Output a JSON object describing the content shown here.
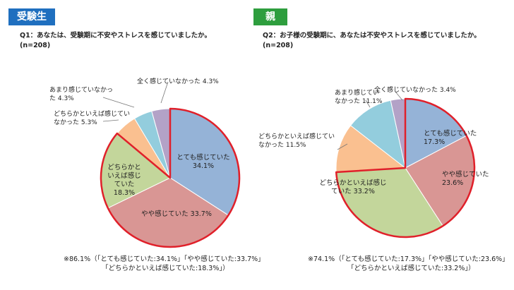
{
  "colors": {
    "students_tag": "#1f6fbf",
    "parents_tag": "#2e9e3e",
    "highlight_border": "#e0202a",
    "callout_line": "#777777"
  },
  "chart_data": [
    {
      "type": "pie",
      "panel": "students",
      "tag": "受験生",
      "question": "Q1：あなたは、受験期に不安やストレスを感じていましたか。",
      "n": "(n=208)",
      "start": "top",
      "direction": "clockwise",
      "slices": [
        {
          "label": [
            "とても感じていた",
            "34.1%"
          ],
          "value": 34.1,
          "color": "#95b3d7",
          "highlight": true,
          "inside": true
        },
        {
          "label": [
            "やや感じていた 33.7%"
          ],
          "value": 33.7,
          "color": "#d99694",
          "highlight": true,
          "inside": true
        },
        {
          "label": [
            "どちらかと",
            "いえば感じ",
            "ていた",
            "18.3%"
          ],
          "value": 18.3,
          "color": "#c3d69b",
          "highlight": true,
          "inside": true
        },
        {
          "label": [
            "どちらかといえば感じてい",
            "なかった 5.3%"
          ],
          "value": 5.3,
          "color": "#fac090",
          "highlight": false,
          "inside": false
        },
        {
          "label": [
            "あまり感じていなかっ",
            "た 4.3%"
          ],
          "value": 4.3,
          "color": "#93cddd",
          "highlight": false,
          "inside": false
        },
        {
          "label": [
            "全く感じていなかった 4.3%"
          ],
          "value": 4.3,
          "color": "#b3a2c7",
          "highlight": false,
          "inside": false
        }
      ],
      "note": [
        "※86.1%（「とても感じていた:34.1%」「やや感じていた:33.7%」",
        "「どちらかといえば感じていた:18.3%」）"
      ]
    },
    {
      "type": "pie",
      "panel": "parents",
      "tag": "親",
      "question": "Q2：お子様の受験期に、あなたは不安やストレスを感じていましたか。",
      "n": "(n=208)",
      "start": "top",
      "direction": "clockwise",
      "slices": [
        {
          "label": [
            "とても感じていた",
            "17.3%"
          ],
          "value": 17.3,
          "color": "#95b3d7",
          "highlight": true,
          "inside": true
        },
        {
          "label": [
            "やや感じていた",
            "23.6%"
          ],
          "value": 23.6,
          "color": "#d99694",
          "highlight": true,
          "inside": true
        },
        {
          "label": [
            "どちらかといえば感じ",
            "ていた 33.2%"
          ],
          "value": 33.2,
          "color": "#c3d69b",
          "highlight": true,
          "inside": true
        },
        {
          "label": [
            "どちらかといえば感じてい",
            "なかった 11.5%"
          ],
          "value": 11.5,
          "color": "#fac090",
          "highlight": false,
          "inside": false
        },
        {
          "label": [
            "あまり感じてい",
            "なかった 11.1%"
          ],
          "value": 11.1,
          "color": "#93cddd",
          "highlight": false,
          "inside": false
        },
        {
          "label": [
            "全く感じていなかった 3.4%"
          ],
          "value": 3.4,
          "color": "#b3a2c7",
          "highlight": false,
          "inside": false
        }
      ],
      "note": [
        "※74.1%（「とても感じていた:17.3%」「やや感じていた:23.6%」",
        "「どちらかといえば感じていた:33.2%」）"
      ]
    }
  ]
}
